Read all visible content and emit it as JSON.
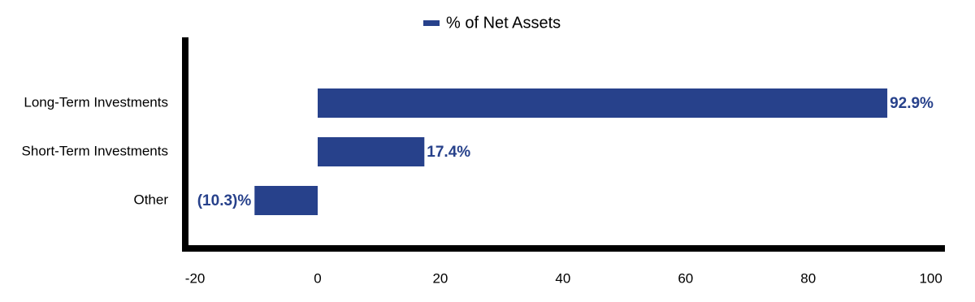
{
  "chart_data": {
    "type": "hbar",
    "categories": [
      "Long-Term Investments",
      "Short-Term Investments",
      "Other"
    ],
    "series": [
      {
        "name": "% of Net Assets",
        "color": "#27418b",
        "values": [
          92.9,
          17.4,
          -10.3
        ],
        "value_labels": [
          "92.9%",
          "17.4%",
          "(10.3)%"
        ]
      }
    ],
    "xlim": [
      -21.6,
      102.3
    ],
    "xticks": [
      -20,
      0,
      20,
      40,
      60,
      80,
      100
    ],
    "grid": false,
    "legend": "top"
  }
}
